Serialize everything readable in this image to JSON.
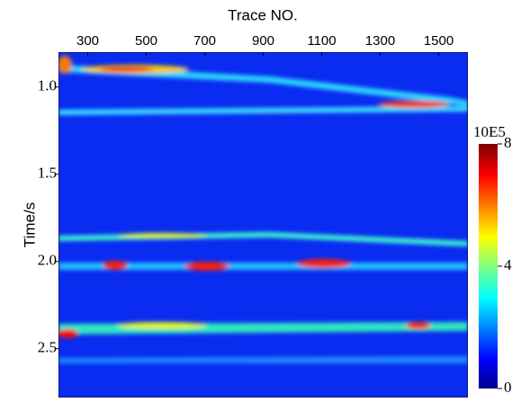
{
  "chart_data": {
    "type": "heatmap",
    "title": "Trace NO.",
    "y_label": "Time/s",
    "xlim": [
      200,
      1600
    ],
    "xticks": [
      300,
      500,
      700,
      900,
      1100,
      1300,
      1500
    ],
    "ylim": [
      0.8,
      2.78
    ],
    "yticks": [
      {
        "value": 1,
        "label": "1.0"
      },
      1.5,
      {
        "value": 2,
        "label": "2.0"
      },
      2.5
    ],
    "colorbar": {
      "label": "10E5",
      "lim": [
        0,
        8
      ],
      "ticks": [
        0,
        4,
        8
      ]
    }
  }
}
